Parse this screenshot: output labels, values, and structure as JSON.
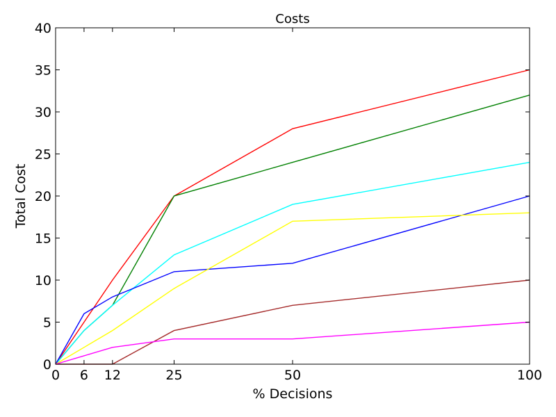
{
  "chart_data": {
    "type": "line",
    "title": "Costs",
    "xlabel": "% Decisions",
    "ylabel": "Total Cost",
    "x": [
      0,
      6,
      12,
      25,
      50,
      100
    ],
    "xticks": [
      0,
      6,
      12,
      25,
      50,
      100
    ],
    "yticks": [
      0,
      5,
      10,
      15,
      20,
      25,
      30,
      35,
      40
    ],
    "xlim": [
      0,
      100
    ],
    "ylim": [
      0,
      40
    ],
    "grid": false,
    "series": [
      {
        "color": "#ff0000",
        "values": [
          0,
          5,
          10,
          20,
          28,
          35
        ]
      },
      {
        "color": "#008000",
        "values": [
          0,
          4,
          7,
          20,
          24,
          32
        ]
      },
      {
        "color": "#00ffff",
        "values": [
          0,
          4,
          7,
          13,
          19,
          24
        ]
      },
      {
        "color": "#0000ff",
        "values": [
          0,
          6,
          8,
          11,
          12,
          20
        ]
      },
      {
        "color": "#ffff00",
        "values": [
          0,
          2,
          4,
          9,
          17,
          18
        ]
      },
      {
        "color": "#a52a2a",
        "values": [
          0,
          0,
          0,
          4,
          7,
          10
        ]
      },
      {
        "color": "#ff00ff",
        "values": [
          0,
          1,
          2,
          3,
          3,
          5
        ]
      }
    ]
  }
}
